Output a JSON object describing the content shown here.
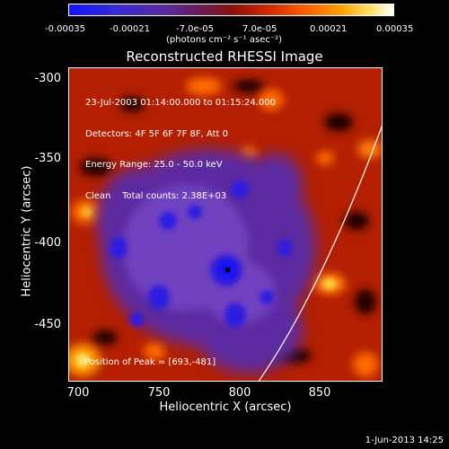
{
  "colorbar": {
    "tick_labels": [
      "-0.00035",
      "-0.00021",
      "-7.0e-05",
      "7.0e-05",
      "0.00021",
      "0.00035"
    ],
    "units": "(photons cm⁻² s⁻¹ asec⁻²)"
  },
  "title": "Reconstructed RHESSI Image",
  "annotations": [
    "23-Jul-2003 01:14:00.000 to 01:15:24.000",
    "Detectors: 4F 5F 6F 7F 8F, Att 0",
    "Energy Range: 25.0 - 50.0 keV",
    "Clean    Total counts: 2.38E+03"
  ],
  "peak_label": "Position of Peak = [693,-481]",
  "axes": {
    "xlabel": "Heliocentric X (arcsec)",
    "ylabel": "Heliocentric Y (arcsec)",
    "x_ticks": [
      "700",
      "750",
      "800",
      "850"
    ],
    "y_ticks": [
      "-300",
      "-350",
      "-400",
      "-450"
    ]
  },
  "footer_date": "1-Jun-2013 14:25"
}
